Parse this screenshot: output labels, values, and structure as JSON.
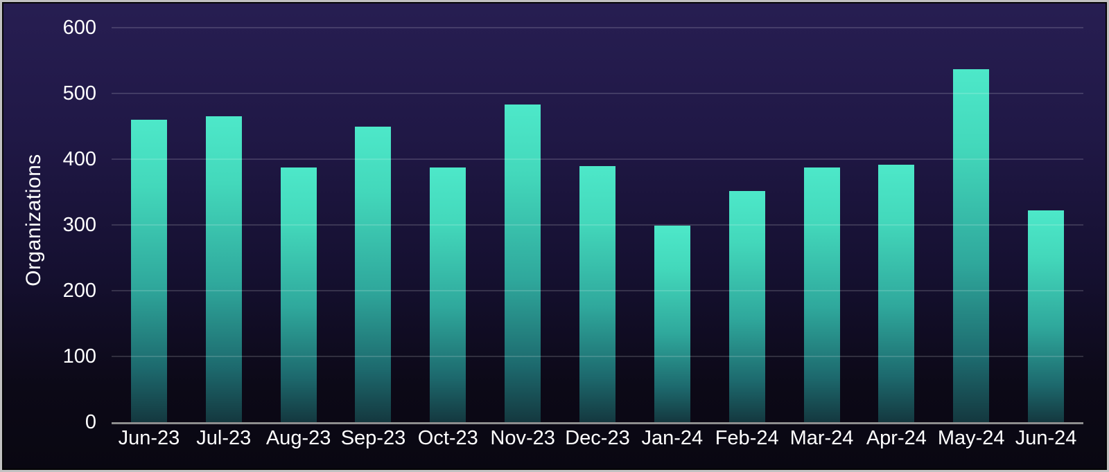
{
  "chart_data": {
    "type": "bar",
    "title": "",
    "xlabel": "",
    "ylabel": "Organizations",
    "categories": [
      "Jun-23",
      "Jul-23",
      "Aug-23",
      "Sep-23",
      "Oct-23",
      "Nov-23",
      "Dec-23",
      "Jan-24",
      "Feb-24",
      "Mar-24",
      "Apr-24",
      "May-24",
      "Jun-24"
    ],
    "values": [
      460,
      465,
      387,
      450,
      387,
      483,
      389,
      299,
      352,
      387,
      392,
      537,
      322
    ],
    "ylim": [
      0,
      600
    ],
    "yticks": [
      0,
      100,
      200,
      300,
      400,
      500,
      600
    ],
    "grid": "horizontal gridlines on, drawn faintly over bars",
    "legend": "none",
    "colors": {
      "background_top": "#271e52",
      "background_bottom": "#090711",
      "bar_gradient_top": "#4de8c9",
      "bar_gradient_bottom": "#14383f",
      "gridline": "rgba(255,255,255,0.15)",
      "axis_line": "#8e8e8e",
      "text": "#ffffff",
      "frame_border": "#c2c2c2"
    }
  }
}
